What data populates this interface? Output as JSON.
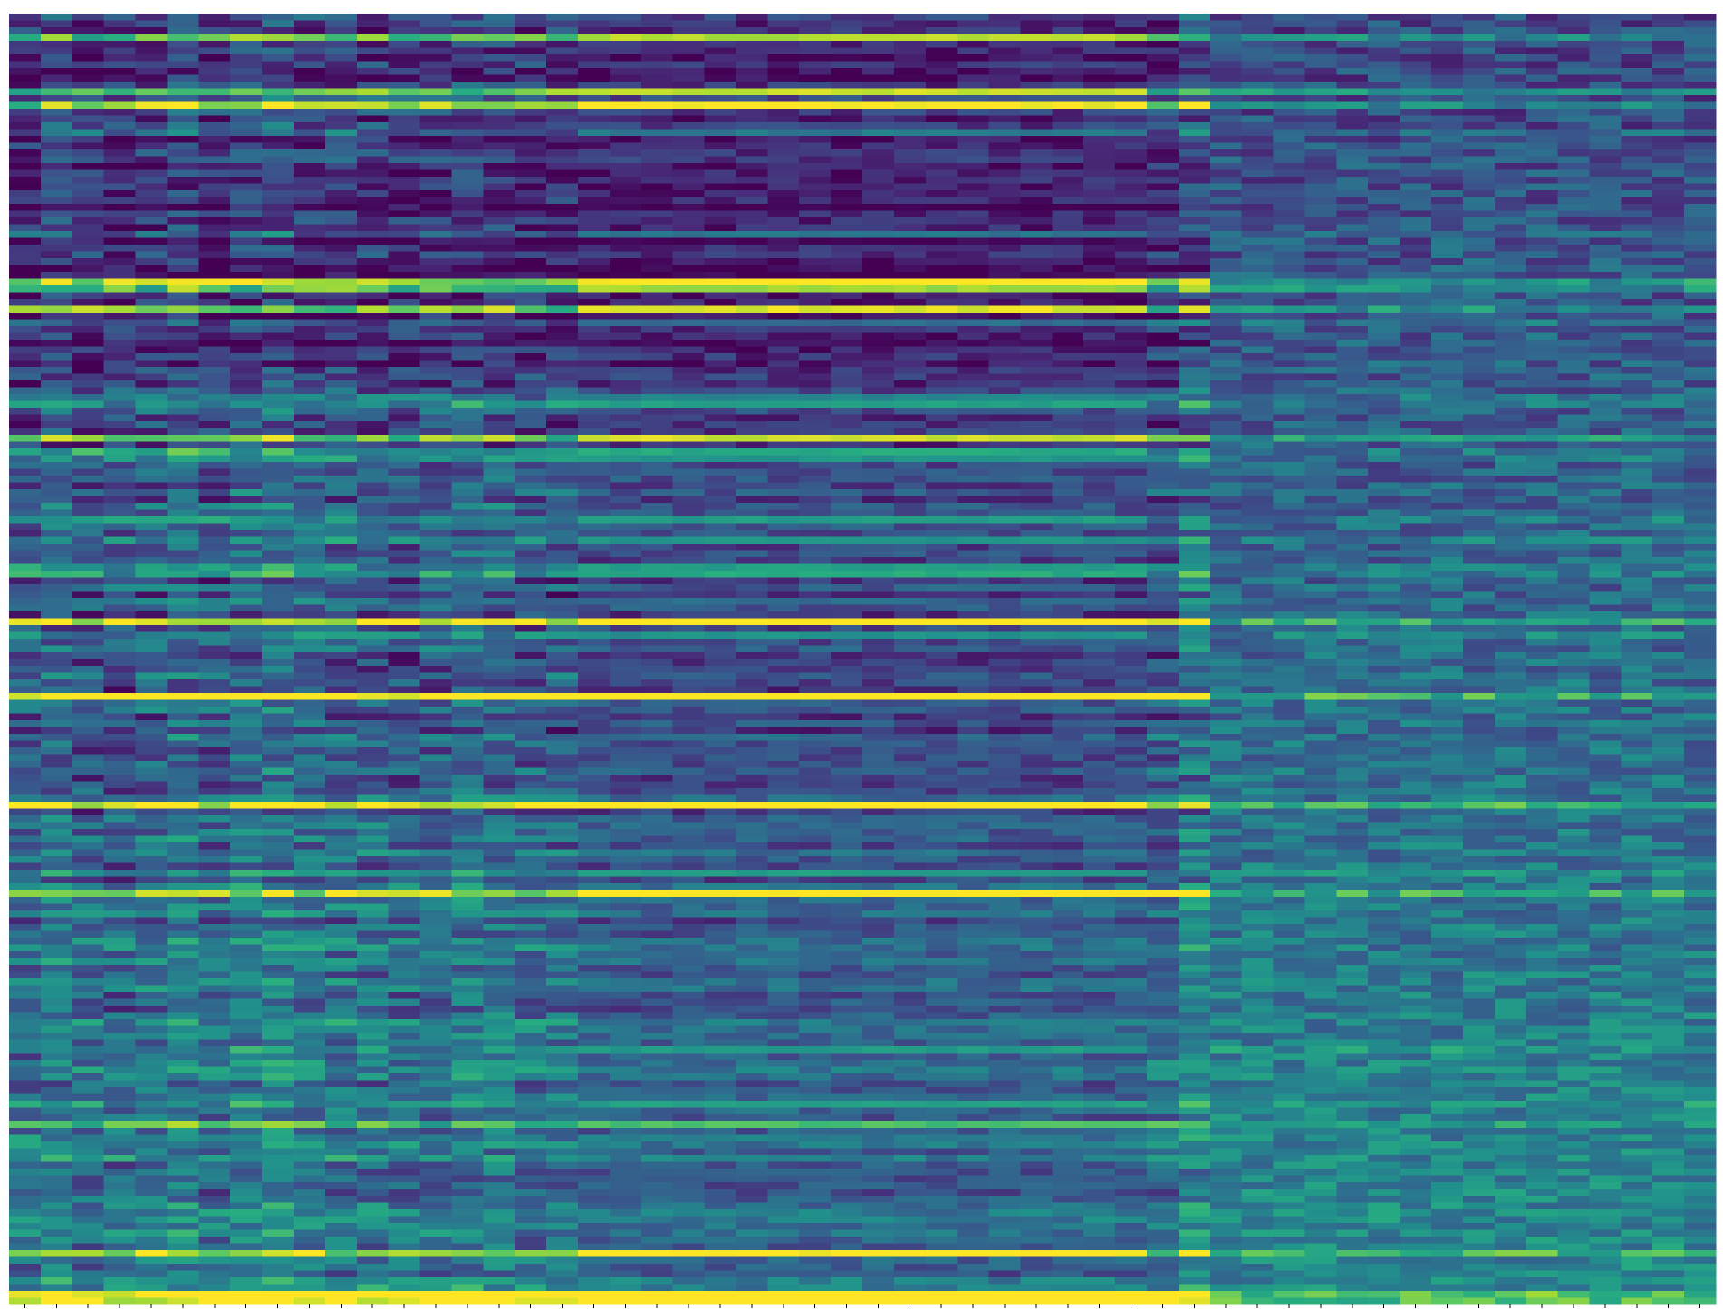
{
  "chart_data": {
    "type": "heatmap",
    "title": "",
    "xlabel": "",
    "ylabel": "",
    "n_columns": 54,
    "n_rows": 190,
    "column_groups": [
      {
        "start": 0,
        "end": 17,
        "pattern": "mixed"
      },
      {
        "start": 18,
        "end": 35,
        "pattern": "banded"
      },
      {
        "start": 36,
        "end": 37,
        "pattern": "mixed"
      },
      {
        "start": 38,
        "end": 53,
        "pattern": "diffuse"
      }
    ],
    "value_range": [
      0,
      1
    ],
    "colormap": "viridis",
    "colorbar": false,
    "grid": false,
    "x_ticks": "unlabeled",
    "y_ticks": "none",
    "colors": {
      "low": "#440154",
      "mid_low": "#3b528b",
      "mid": "#21918c",
      "mid_high": "#5ec962",
      "high": "#fde725",
      "tick": "#000000",
      "background": "#ffffff"
    }
  }
}
